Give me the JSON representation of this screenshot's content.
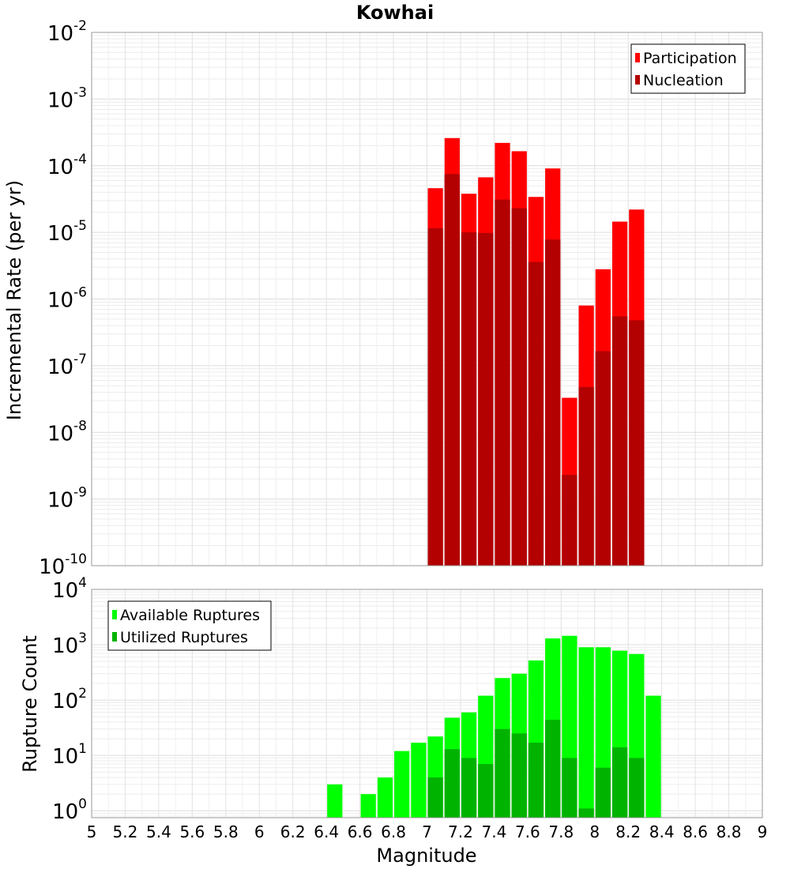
{
  "chart_data": [
    {
      "type": "bar",
      "title": "Kowhai",
      "xlabel": "",
      "ylabel": "Incremental Rate (per yr)",
      "yscale": "log",
      "ylim": [
        1e-10,
        0.01
      ],
      "xlim": [
        5,
        9
      ],
      "y_ticks": [
        {
          "base": "10",
          "exp": "-2"
        },
        {
          "base": "10",
          "exp": "-3"
        },
        {
          "base": "10",
          "exp": "-4"
        },
        {
          "base": "10",
          "exp": "-5"
        },
        {
          "base": "10",
          "exp": "-6"
        },
        {
          "base": "10",
          "exp": "-7"
        },
        {
          "base": "10",
          "exp": "-8"
        },
        {
          "base": "10",
          "exp": "-9"
        },
        {
          "base": "10",
          "exp": "-10"
        }
      ],
      "grid": true,
      "legend_position": "top-right",
      "x": [
        7.05,
        7.15,
        7.25,
        7.35,
        7.45,
        7.55,
        7.65,
        7.75,
        7.85,
        7.95,
        8.05,
        8.15,
        8.25
      ],
      "series": [
        {
          "name": "Participation",
          "color": "#ff0000",
          "values": [
            4.6e-05,
            0.00026,
            3.8e-05,
            6.7e-05,
            0.00022,
            0.000165,
            3.4e-05,
            9.1e-05,
            3.3e-08,
            8e-07,
            2.8e-06,
            1.45e-05,
            2.2e-05
          ]
        },
        {
          "name": "Nucleation",
          "color": "#b30000",
          "values": [
            1.15e-05,
            7.5e-05,
            1e-05,
            9.8e-06,
            3.1e-05,
            2.3e-05,
            3.6e-06,
            7.8e-06,
            2.3e-09,
            4.8e-08,
            1.65e-07,
            5.5e-07,
            4.8e-07
          ]
        }
      ]
    },
    {
      "type": "bar",
      "title": "",
      "xlabel": "Magnitude",
      "ylabel": "Rupture Count",
      "yscale": "log",
      "ylim": [
        0.75,
        10000
      ],
      "xlim": [
        5,
        9
      ],
      "y_ticks": [
        {
          "value": 10000,
          "base": "10",
          "exp": "4"
        },
        {
          "value": 1000,
          "base": "10",
          "exp": "3"
        },
        {
          "value": 100,
          "base": "10",
          "exp": "2"
        },
        {
          "value": 10,
          "base": "10",
          "exp": "1"
        },
        {
          "value": 1,
          "base": "10",
          "exp": "0"
        }
      ],
      "x_tick_labels": [
        "5",
        "5.2",
        "5.4",
        "5.6",
        "5.8",
        "6",
        "6.2",
        "6.4",
        "6.6",
        "6.8",
        "7",
        "7.2",
        "7.4",
        "7.6",
        "7.8",
        "8",
        "8.2",
        "8.4",
        "8.6",
        "8.8",
        "9"
      ],
      "grid": true,
      "legend_position": "top-left",
      "x": [
        6.45,
        6.55,
        6.65,
        6.75,
        6.85,
        6.95,
        7.05,
        7.15,
        7.25,
        7.35,
        7.45,
        7.55,
        7.65,
        7.75,
        7.85,
        7.95,
        8.05,
        8.15,
        8.25,
        8.35
      ],
      "series": [
        {
          "name": "Available Ruptures",
          "color": "#00ff00",
          "values": [
            3,
            0,
            2,
            4,
            12,
            17,
            22,
            48,
            60,
            120,
            250,
            300,
            520,
            1300,
            1450,
            900,
            900,
            780,
            680,
            120
          ]
        },
        {
          "name": "Utilized Ruptures",
          "color": "#00b300",
          "values": [
            0,
            0,
            0,
            0,
            0,
            0,
            4,
            13,
            9,
            7,
            30,
            25,
            17,
            44,
            9,
            1.1,
            6,
            14,
            9,
            0
          ]
        }
      ]
    }
  ]
}
